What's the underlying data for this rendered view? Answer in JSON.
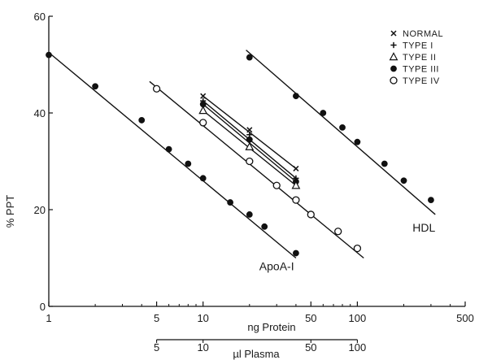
{
  "chart_data": {
    "type": "scatter",
    "x_scale": "log",
    "xlim": [
      1,
      500
    ],
    "ylim": [
      0,
      60
    ],
    "xlabel": "ng Protein",
    "ylabel": "% PPT",
    "x_ticks": [
      1,
      5,
      10,
      50,
      100,
      500
    ],
    "x_tick_labels": [
      "1",
      "5",
      "10",
      "50",
      "100",
      "500"
    ],
    "y_ticks": [
      0,
      20,
      40,
      60
    ],
    "y_tick_labels": [
      "0",
      "20",
      "40",
      "60"
    ],
    "secondary_x_axis": {
      "label": "µl Plasma",
      "scale": "log",
      "range": [
        5,
        100
      ],
      "ticks": [
        5,
        10,
        50,
        100
      ],
      "tick_labels": [
        "5",
        "10",
        "50",
        "100"
      ]
    },
    "grid": false,
    "legend_position": "top-right",
    "legend": [
      {
        "name": "NORMAL",
        "marker": "x",
        "symbol": "×"
      },
      {
        "name": "TYPE I",
        "marker": "plus",
        "symbol": "+"
      },
      {
        "name": "TYPE II",
        "marker": "triangle-open",
        "symbol": "△"
      },
      {
        "name": "TYPE III",
        "marker": "circle-filled",
        "symbol": "●"
      },
      {
        "name": "TYPE IV",
        "marker": "circle-open",
        "symbol": "○"
      }
    ],
    "series": [
      {
        "name": "ApoA-I",
        "label": "ApoA-I",
        "marker": "circle-filled",
        "points": [
          [
            1,
            52
          ],
          [
            2,
            45.5
          ],
          [
            4,
            38.5
          ],
          [
            6,
            32.5
          ],
          [
            8,
            29.5
          ],
          [
            10,
            26.5
          ],
          [
            15,
            21.5
          ],
          [
            20,
            19
          ],
          [
            25,
            16.5
          ],
          [
            40,
            11
          ]
        ],
        "fit_line": [
          [
            1,
            52.5
          ],
          [
            40,
            10
          ]
        ]
      },
      {
        "name": "TYPE IV",
        "marker": "circle-open",
        "points": [
          [
            5,
            45
          ],
          [
            10,
            38
          ],
          [
            20,
            30
          ],
          [
            30,
            25
          ],
          [
            40,
            22
          ],
          [
            50,
            19
          ],
          [
            75,
            15.5
          ],
          [
            100,
            12
          ]
        ],
        "fit_line": [
          [
            4.5,
            46.5
          ],
          [
            110,
            10
          ]
        ]
      },
      {
        "name": "NORMAL",
        "marker": "x",
        "points": [
          [
            10,
            43.5
          ],
          [
            20,
            36.5
          ],
          [
            40,
            28.5
          ]
        ],
        "fit_line": [
          [
            10,
            43.5
          ],
          [
            40,
            28.5
          ]
        ]
      },
      {
        "name": "TYPE I",
        "marker": "plus",
        "points": [
          [
            10,
            42.5
          ],
          [
            20,
            35.5
          ],
          [
            40,
            26.5
          ]
        ],
        "fit_line": [
          [
            10,
            42.5
          ],
          [
            40,
            26.5
          ]
        ]
      },
      {
        "name": "TYPE III",
        "marker": "circle-filled",
        "points": [
          [
            10,
            41.8
          ],
          [
            20,
            34.5
          ],
          [
            40,
            25.8
          ]
        ],
        "fit_line": [
          [
            10,
            41.8
          ],
          [
            40,
            25.8
          ]
        ]
      },
      {
        "name": "TYPE II",
        "marker": "triangle-open",
        "points": [
          [
            10,
            40.5
          ],
          [
            20,
            33
          ],
          [
            40,
            25
          ]
        ],
        "fit_line": [
          [
            10,
            40.5
          ],
          [
            40,
            25
          ]
        ]
      },
      {
        "name": "HDL",
        "label": "HDL",
        "marker": "circle-filled",
        "points": [
          [
            20,
            51.5
          ],
          [
            40,
            43.5
          ],
          [
            60,
            40
          ],
          [
            80,
            37
          ],
          [
            100,
            34
          ],
          [
            150,
            29.5
          ],
          [
            200,
            26
          ],
          [
            300,
            22
          ]
        ],
        "fit_line": [
          [
            19,
            53
          ],
          [
            320,
            19
          ]
        ]
      }
    ],
    "annotations": [
      {
        "text": "ApoA-I",
        "x": 30,
        "y": 7.5
      },
      {
        "text": "HDL",
        "x": 270,
        "y": 15.5
      }
    ]
  }
}
